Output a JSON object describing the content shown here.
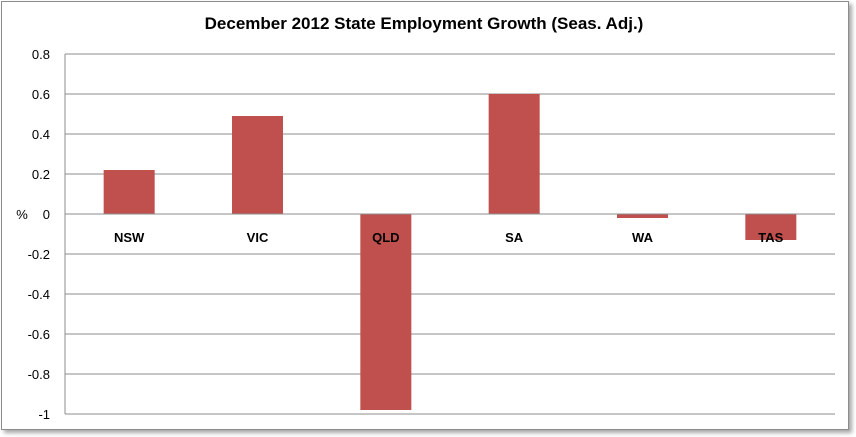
{
  "chart_data": {
    "type": "bar",
    "title": "December 2012 State Employment Growth (Seas. Adj.)",
    "xlabel": "",
    "ylabel": "%",
    "categories": [
      "NSW",
      "VIC",
      "QLD",
      "SA",
      "WA",
      "TAS"
    ],
    "values": [
      0.22,
      0.49,
      -0.98,
      0.6,
      -0.02,
      -0.13
    ],
    "ylim": [
      -1,
      0.8
    ],
    "yticks": [
      0.8,
      0.6,
      0.4,
      0.2,
      0,
      -0.2,
      -0.4,
      -0.6,
      -0.8,
      -1
    ],
    "ytick_labels": [
      "0.8",
      "0.6",
      "0.4",
      "0.2",
      "0",
      "-0.2",
      "-0.4",
      "-0.6",
      "-0.8",
      "-1"
    ],
    "grid": true,
    "legend": "none",
    "bar_color": "#c0504d"
  }
}
